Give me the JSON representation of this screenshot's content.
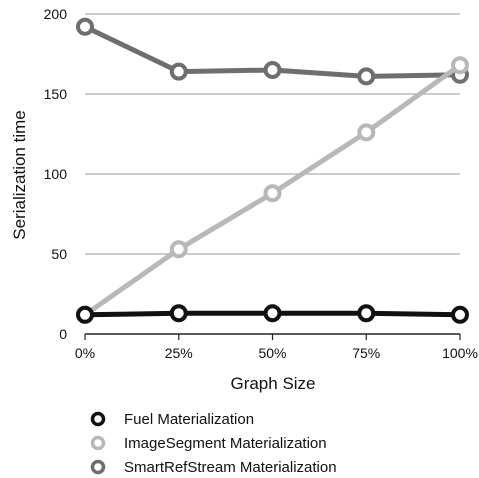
{
  "chart_data": {
    "type": "line",
    "categories": [
      "0%",
      "25%",
      "50%",
      "75%",
      "100%"
    ],
    "xlabel": "Graph Size",
    "ylabel": "Serialization time",
    "ylim": [
      0,
      200
    ],
    "yticks": [
      0,
      50,
      100,
      150,
      200
    ],
    "grid": true,
    "legend_position": "bottom",
    "series": [
      {
        "name": "Fuel Materialization",
        "values": [
          12,
          13,
          13,
          13,
          12
        ],
        "color": "#111111"
      },
      {
        "name": "ImageSegment Materialization",
        "values": [
          12,
          53,
          88,
          126,
          168
        ],
        "color": "#b8b8b8"
      },
      {
        "name": "SmartRefStream Materialization",
        "values": [
          192,
          164,
          165,
          161,
          162
        ],
        "color": "#6e6e6e"
      }
    ]
  }
}
